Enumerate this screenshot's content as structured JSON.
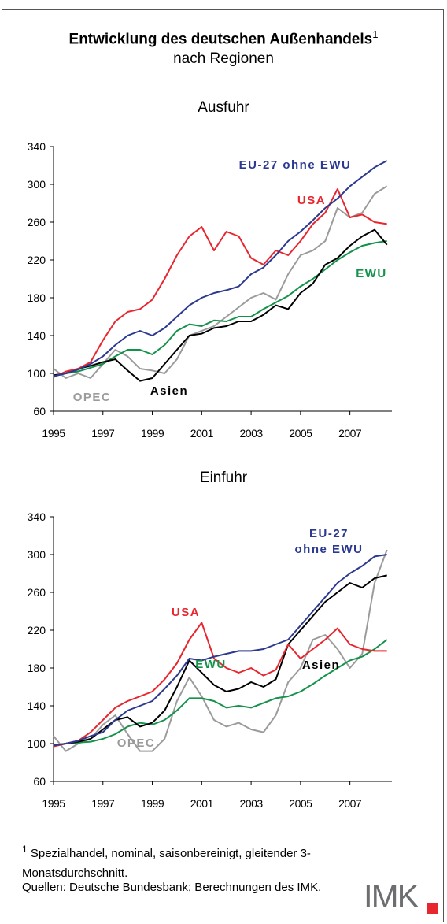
{
  "title": "Entwicklung des deutschen Außenhandels",
  "title_note_marker": "1",
  "subtitle": "nach Regionen",
  "chart_data": [
    {
      "type": "line",
      "title": "Ausfuhr",
      "x": [
        1995,
        1995.5,
        1996,
        1996.5,
        1997,
        1997.5,
        1998,
        1998.5,
        1999,
        1999.5,
        2000,
        2000.5,
        2001,
        2001.5,
        2002,
        2002.5,
        2003,
        2003.5,
        2004,
        2004.5,
        2005,
        2005.5,
        2006,
        2006.5,
        2007,
        2007.5,
        2008,
        2008.5
      ],
      "xlim": [
        1995,
        2008.7
      ],
      "xticks": [
        1995,
        1997,
        1999,
        2001,
        2003,
        2005,
        2007
      ],
      "ylim": [
        60,
        340
      ],
      "yticks": [
        60,
        100,
        140,
        180,
        220,
        260,
        300,
        340
      ],
      "series": [
        {
          "name": "EU-27 ohne EWU",
          "color": "#2b3990",
          "values": [
            97,
            100,
            104,
            110,
            118,
            130,
            140,
            145,
            140,
            148,
            160,
            172,
            180,
            185,
            188,
            192,
            205,
            212,
            225,
            240,
            250,
            262,
            275,
            285,
            298,
            308,
            318,
            325
          ]
        },
        {
          "name": "USA",
          "color": "#e8262e",
          "values": [
            96,
            102,
            105,
            112,
            135,
            155,
            165,
            168,
            178,
            200,
            225,
            245,
            255,
            230,
            250,
            245,
            222,
            215,
            230,
            225,
            240,
            258,
            270,
            295,
            265,
            268,
            260,
            258
          ]
        },
        {
          "name": "EWU",
          "color": "#13924a",
          "values": [
            97,
            100,
            102,
            106,
            110,
            118,
            125,
            125,
            120,
            130,
            145,
            152,
            150,
            156,
            155,
            160,
            160,
            168,
            175,
            182,
            192,
            200,
            210,
            220,
            228,
            235,
            238,
            240
          ]
        },
        {
          "name": "Asien",
          "color": "#000000",
          "values": [
            98,
            100,
            105,
            108,
            112,
            115,
            103,
            92,
            95,
            110,
            125,
            140,
            142,
            148,
            150,
            155,
            155,
            162,
            172,
            168,
            185,
            195,
            215,
            222,
            235,
            245,
            252,
            236
          ]
        },
        {
          "name": "OPEC",
          "color": "#9b9b9b",
          "values": [
            105,
            95,
            100,
            95,
            110,
            125,
            118,
            105,
            103,
            100,
            115,
            140,
            145,
            150,
            160,
            170,
            180,
            185,
            178,
            205,
            225,
            230,
            240,
            275,
            265,
            270,
            290,
            298
          ]
        }
      ]
    },
    {
      "type": "line",
      "title": "Einfuhr",
      "x": [
        1995,
        1995.5,
        1996,
        1996.5,
        1997,
        1997.5,
        1998,
        1998.5,
        1999,
        1999.5,
        2000,
        2000.5,
        2001,
        2001.5,
        2002,
        2002.5,
        2003,
        2003.5,
        2004,
        2004.5,
        2005,
        2005.5,
        2006,
        2006.5,
        2007,
        2007.5,
        2008,
        2008.5
      ],
      "xlim": [
        1995,
        2008.7
      ],
      "xticks": [
        1995,
        1997,
        1999,
        2001,
        2003,
        2005,
        2007
      ],
      "ylim": [
        60,
        340
      ],
      "yticks": [
        60,
        100,
        140,
        180,
        220,
        260,
        300,
        340
      ],
      "series": [
        {
          "name": "EU-27 ohne EWU",
          "color": "#2b3990",
          "values": [
            98,
            100,
            103,
            108,
            112,
            125,
            135,
            140,
            145,
            158,
            172,
            190,
            188,
            192,
            195,
            198,
            198,
            200,
            205,
            210,
            225,
            240,
            255,
            270,
            280,
            288,
            298,
            300
          ]
        },
        {
          "name": "USA",
          "color": "#e8262e",
          "values": [
            97,
            100,
            103,
            112,
            125,
            138,
            145,
            150,
            155,
            168,
            185,
            210,
            228,
            190,
            180,
            175,
            180,
            172,
            178,
            205,
            190,
            200,
            210,
            222,
            205,
            200,
            198,
            198
          ]
        },
        {
          "name": "EWU",
          "color": "#13924a",
          "values": [
            98,
            100,
            101,
            102,
            105,
            110,
            118,
            122,
            120,
            125,
            135,
            148,
            148,
            145,
            138,
            140,
            138,
            143,
            148,
            150,
            155,
            163,
            172,
            180,
            188,
            192,
            200,
            210
          ]
        },
        {
          "name": "Asien",
          "color": "#000000",
          "values": [
            98,
            100,
            102,
            105,
            115,
            125,
            128,
            118,
            122,
            135,
            160,
            188,
            175,
            162,
            155,
            158,
            165,
            160,
            168,
            205,
            220,
            235,
            250,
            260,
            270,
            265,
            275,
            278
          ]
        },
        {
          "name": "OPEC",
          "color": "#9b9b9b",
          "values": [
            108,
            92,
            100,
            105,
            120,
            130,
            110,
            92,
            92,
            105,
            145,
            170,
            150,
            125,
            118,
            122,
            115,
            112,
            130,
            165,
            180,
            210,
            215,
            200,
            180,
            195,
            270,
            305
          ]
        }
      ]
    }
  ],
  "footnote_marker": "1",
  "footnote": "Spezialhandel, nominal, saisonbereinigt, gleitender 3-Monatsdurchschnitt.",
  "source": "Quellen: Deutsche Bundesbank; Berechnungen des IMK.",
  "logo": "IMK"
}
